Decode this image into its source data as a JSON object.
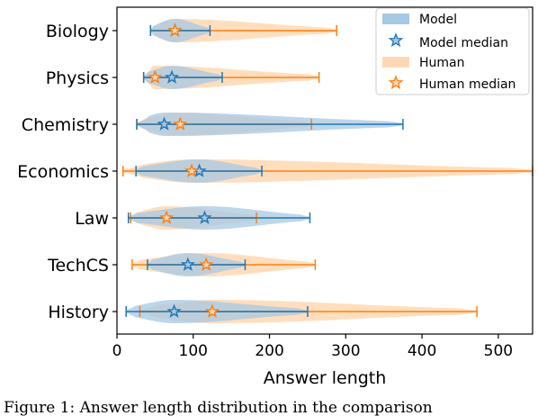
{
  "chart_data": {
    "type": "violin",
    "xlabel": "Answer length",
    "xlim": [
      0,
      545
    ],
    "xticks": [
      0,
      100,
      200,
      300,
      400,
      500
    ],
    "categories": [
      "Biology",
      "Physics",
      "Chemistry",
      "Economics",
      "Law",
      "TechCS",
      "History"
    ],
    "series": [
      {
        "name": "Model",
        "median_name": "Model median",
        "color": "#1f77b4",
        "fill": "#a7c8e3",
        "min": [
          44,
          35,
          26,
          25,
          15,
          40,
          12
        ],
        "median": [
          76,
          72,
          62,
          108,
          115,
          93,
          75
        ],
        "max": [
          122,
          138,
          375,
          190,
          253,
          168,
          250
        ]
      },
      {
        "name": "Human",
        "median_name": "Human median",
        "color": "#ff7f0e",
        "fill": "#ffd8b3",
        "min": [
          44,
          35,
          26,
          8,
          18,
          20,
          30
        ],
        "median": [
          76,
          50,
          83,
          98,
          65,
          117,
          125
        ],
        "max": [
          288,
          265,
          255,
          545,
          183,
          260,
          472
        ]
      }
    ],
    "legend": [
      "Model",
      "Model median",
      "Human",
      "Human median"
    ],
    "legend_position": "top-right"
  },
  "caption": "Figure 1: Answer length distribution in the comparison"
}
